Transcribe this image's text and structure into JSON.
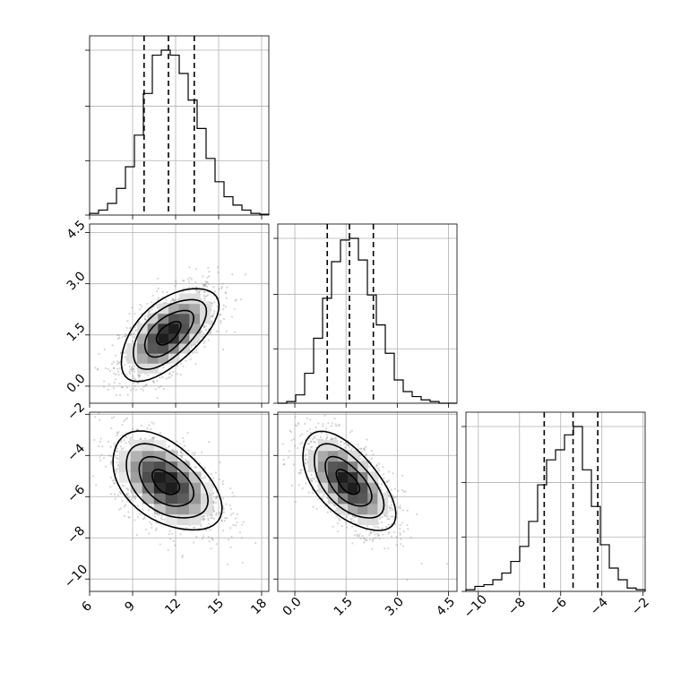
{
  "chart_data": {
    "type": "corner",
    "parameters": [
      {
        "range": [
          6,
          18.5
        ],
        "ticks": [
          6,
          9,
          12,
          15,
          18
        ],
        "labels": [
          "6",
          "9",
          "12",
          "15",
          "18"
        ]
      },
      {
        "range": [
          -0.5,
          4.75
        ],
        "ticks": [
          0.0,
          1.5,
          3.0,
          4.5
        ],
        "labels": [
          "0.0",
          "1.5",
          "3.0",
          "4.5"
        ]
      },
      {
        "range": [
          -10.6,
          -1.9
        ],
        "ticks": [
          -10,
          -8,
          -6,
          -4,
          -2
        ],
        "labels": [
          "−10",
          "−8",
          "−6",
          "−4",
          "−2"
        ]
      }
    ],
    "histograms": [
      {
        "bin_edges": [
          6.0,
          6.625,
          7.25,
          7.875,
          8.5,
          9.125,
          9.75,
          10.375,
          11.0,
          11.625,
          12.25,
          12.875,
          13.5,
          14.125,
          14.75,
          15.375,
          16.0,
          16.625,
          17.25,
          17.875,
          18.5
        ],
        "counts": [
          0.01,
          0.03,
          0.07,
          0.16,
          0.29,
          0.48,
          0.73,
          0.96,
          0.99,
          0.96,
          0.85,
          0.69,
          0.52,
          0.34,
          0.2,
          0.11,
          0.06,
          0.03,
          0.01,
          0.005
        ],
        "quantiles": [
          9.8,
          11.5,
          13.3
        ]
      },
      {
        "bin_edges": [
          -0.5,
          -0.2375,
          0.025,
          0.2875,
          0.55,
          0.8125,
          1.075,
          1.3375,
          1.6,
          1.8625,
          2.125,
          2.3875,
          2.65,
          2.9125,
          3.175,
          3.4375,
          3.7,
          3.9625,
          4.225,
          4.4875,
          4.75
        ],
        "counts": [
          0.0,
          0.01,
          0.05,
          0.18,
          0.39,
          0.63,
          0.85,
          0.98,
          0.99,
          0.86,
          0.65,
          0.47,
          0.3,
          0.14,
          0.07,
          0.04,
          0.02,
          0.01,
          0.0,
          0.0
        ],
        "quantiles": [
          0.95,
          1.6,
          2.3
        ]
      },
      {
        "bin_edges": [
          -10.6,
          -10.165,
          -9.73,
          -9.295,
          -8.86,
          -8.425,
          -7.99,
          -7.555,
          -7.12,
          -6.685,
          -6.25,
          -5.815,
          -5.38,
          -4.945,
          -4.51,
          -4.075,
          -3.64,
          -3.205,
          -2.77,
          -2.335,
          -1.9
        ],
        "counts": [
          0.01,
          0.03,
          0.04,
          0.07,
          0.11,
          0.18,
          0.27,
          0.42,
          0.64,
          0.79,
          0.85,
          0.94,
          0.99,
          0.73,
          0.51,
          0.28,
          0.14,
          0.07,
          0.02,
          0.01
        ],
        "quantiles": [
          -6.8,
          -5.4,
          -4.2
        ]
      }
    ],
    "joint": [
      {
        "x_param": 0,
        "y_param": 1,
        "mean": [
          11.5,
          1.55
        ],
        "sd": [
          1.7,
          0.68
        ],
        "corr": 0.6
      },
      {
        "x_param": 0,
        "y_param": 2,
        "mean": [
          11.3,
          -5.3
        ],
        "sd": [
          1.9,
          1.2
        ],
        "corr": -0.48
      },
      {
        "x_param": 1,
        "y_param": 2,
        "mean": [
          1.55,
          -5.3
        ],
        "sd": [
          0.68,
          1.2
        ],
        "corr": -0.6
      }
    ]
  }
}
